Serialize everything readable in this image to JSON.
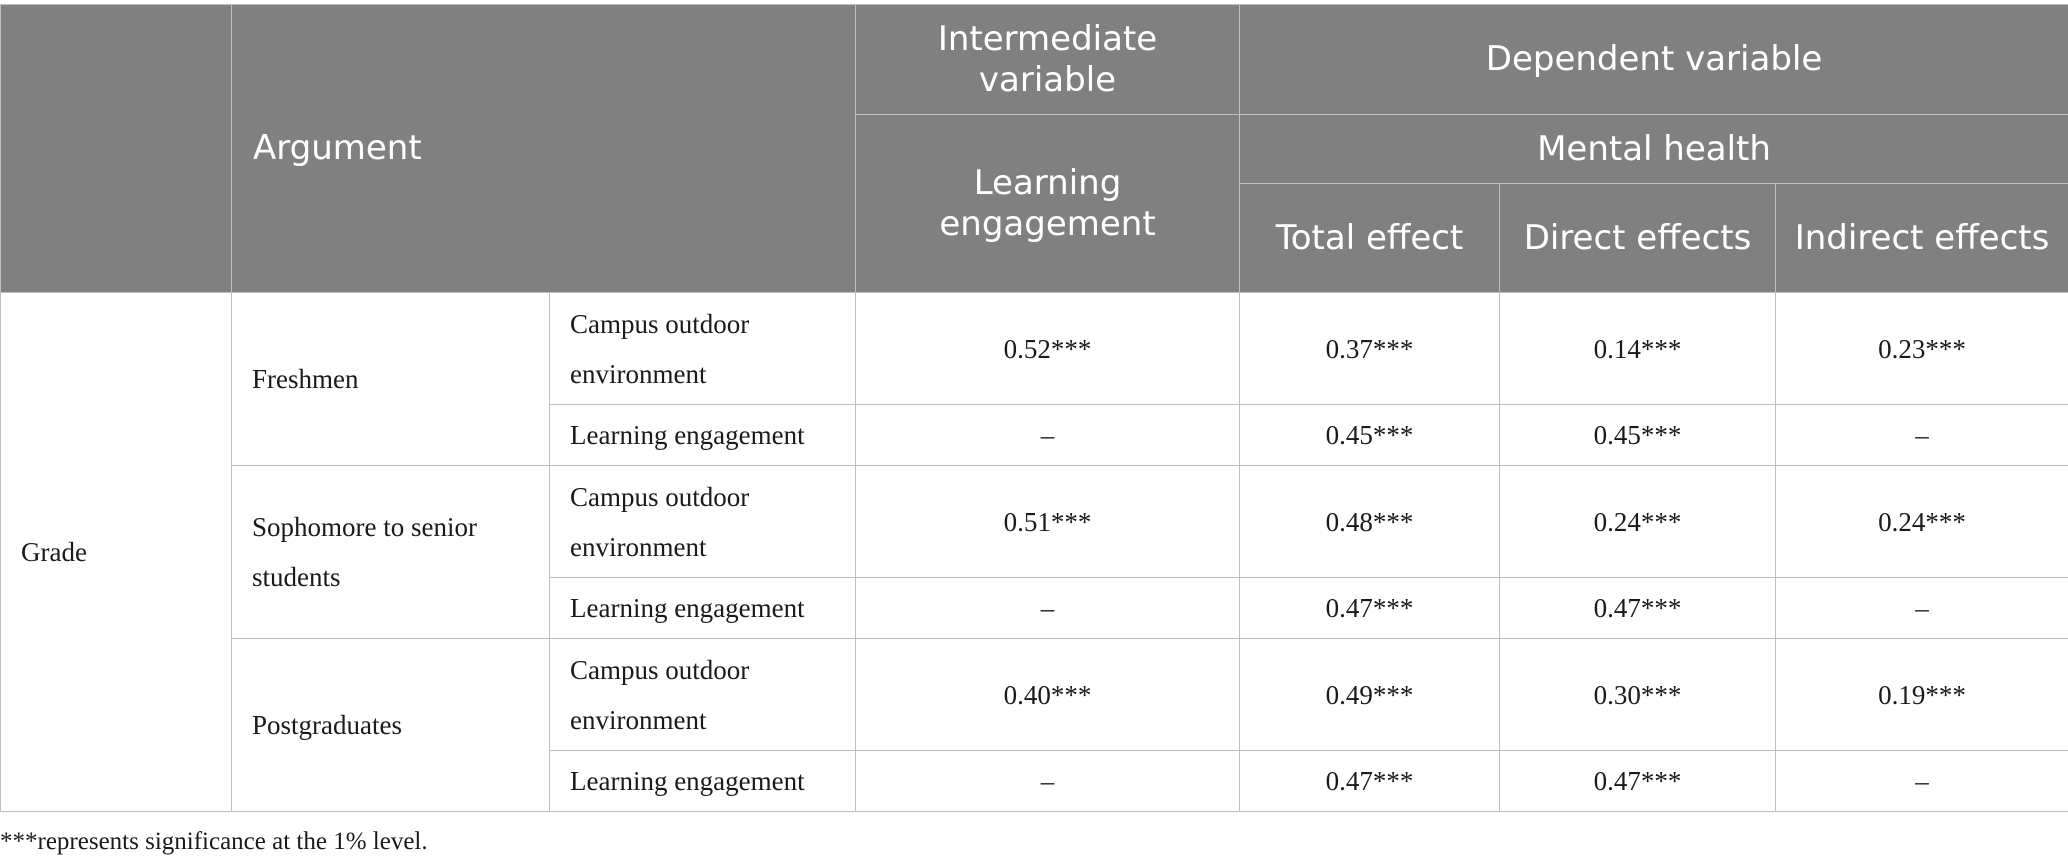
{
  "table": {
    "headers": {
      "argument": "Argument",
      "intermediate_variable": "Intermediate variable",
      "dependent_variable": "Dependent variable",
      "learning_engagement": "Learning engagement",
      "mental_health": "Mental health",
      "total_effect": "Total effect",
      "direct_effects": "Direct effects",
      "indirect_effects": "Indirect effects"
    },
    "grade_label": "Grade",
    "groups": [
      {
        "name": "Freshmen",
        "rows": [
          {
            "predictor": "Campus outdoor environment",
            "learning_engagement": "0.52***",
            "total_effect": "0.37***",
            "direct_effects": "0.14***",
            "indirect_effects": "0.23***"
          },
          {
            "predictor": "Learning engagement",
            "learning_engagement": "–",
            "total_effect": "0.45***",
            "direct_effects": "0.45***",
            "indirect_effects": "–"
          }
        ]
      },
      {
        "name": "Sophomore to senior students",
        "rows": [
          {
            "predictor": "Campus outdoor environment",
            "learning_engagement": "0.51***",
            "total_effect": "0.48***",
            "direct_effects": "0.24***",
            "indirect_effects": "0.24***"
          },
          {
            "predictor": "Learning engagement",
            "learning_engagement": "–",
            "total_effect": "0.47***",
            "direct_effects": "0.47***",
            "indirect_effects": "–"
          }
        ]
      },
      {
        "name": "Postgraduates",
        "rows": [
          {
            "predictor": "Campus outdoor environment",
            "learning_engagement": "0.40***",
            "total_effect": "0.49***",
            "direct_effects": "0.30***",
            "indirect_effects": "0.19***"
          },
          {
            "predictor": "Learning engagement",
            "learning_engagement": "–",
            "total_effect": "0.47***",
            "direct_effects": "0.47***",
            "indirect_effects": "–"
          }
        ]
      }
    ]
  },
  "footnote": "***represents significance at the 1% level.",
  "colors": {
    "header_background": "#808080",
    "header_text": "#ffffff",
    "border": "#bfbfbf"
  }
}
